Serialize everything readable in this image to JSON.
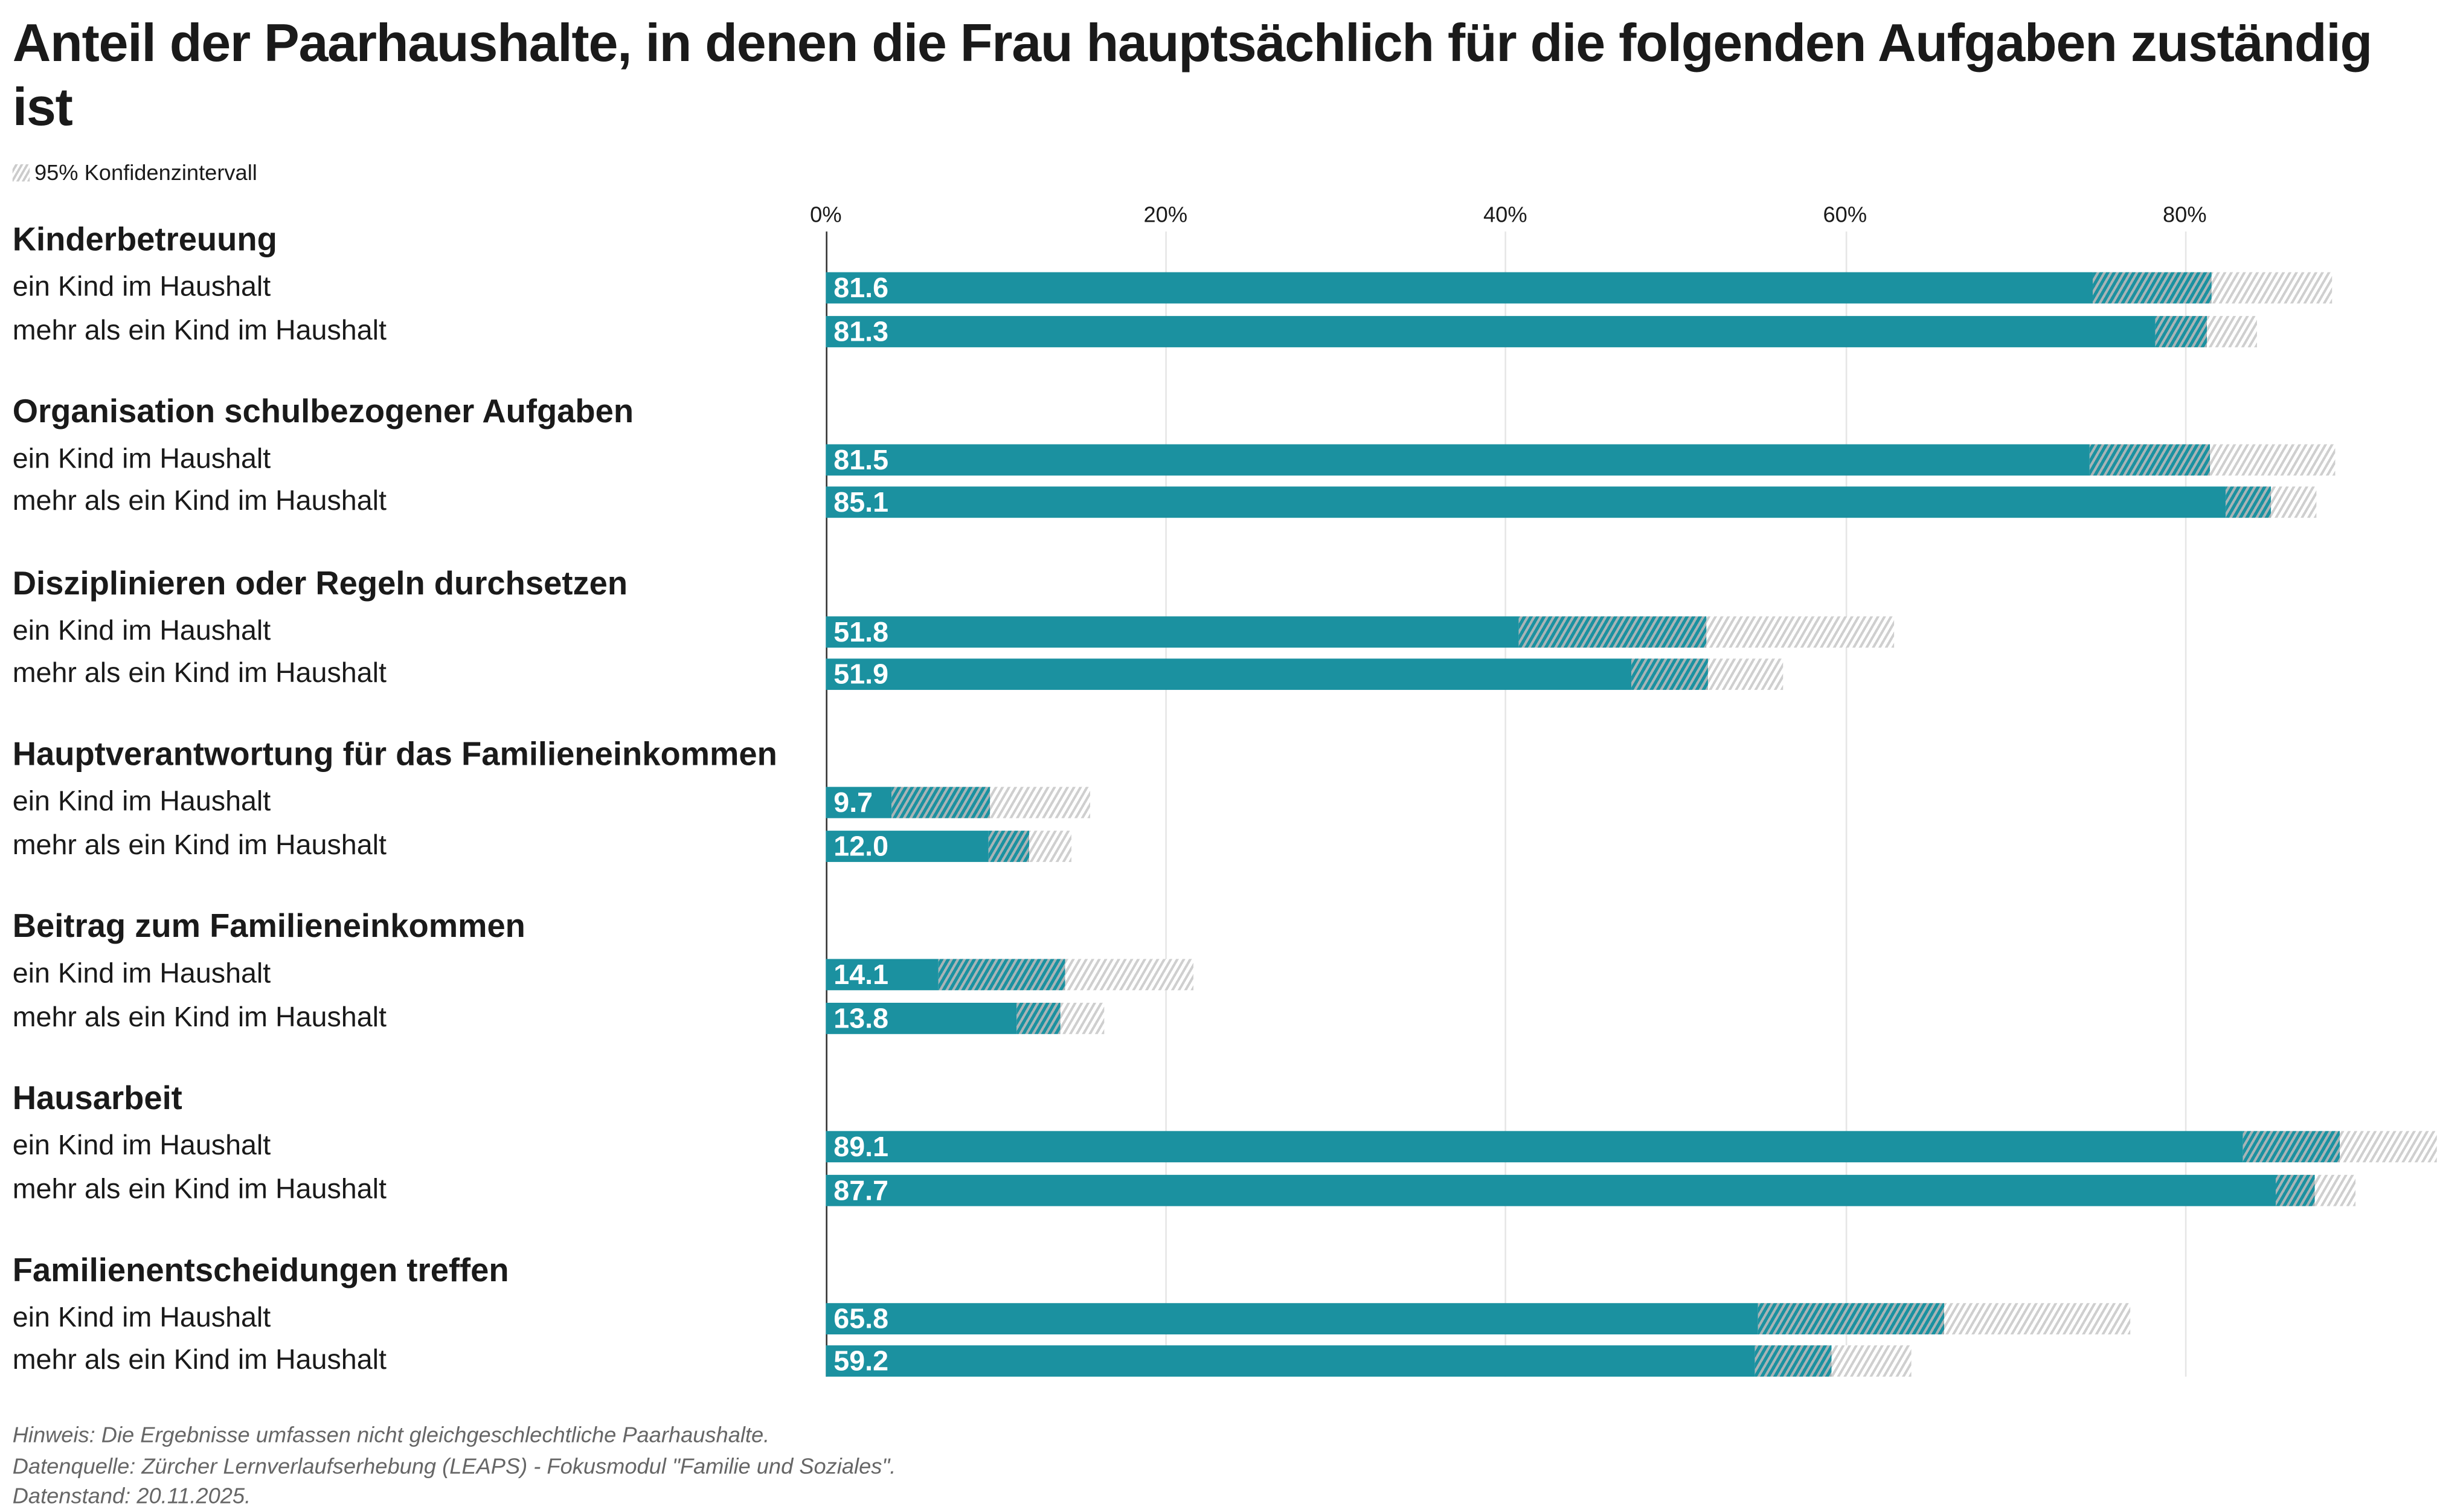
{
  "title": "Anteil der Paarhaushalte, in denen die Frau hauptsächlich für die folgenden Aufgaben zuständig ist",
  "legend": {
    "label": "95% Konfidenzintervall"
  },
  "footer": [
    "Hinweis: Die Ergebnisse umfassen nicht gleichgeschlechtliche Paarhaushalte.",
    "Datenquelle: Zürcher Lernverlaufserhebung (LEAPS) - Fokusmodul \"Familie und Soziales\".",
    "Datenstand: 20.11.2025."
  ],
  "chart_data": {
    "type": "bar",
    "orientation": "horizontal",
    "xlim": [
      0,
      95
    ],
    "ticks": [
      0,
      20,
      40,
      60,
      80
    ],
    "tick_labels": [
      "0%",
      "20%",
      "40%",
      "60%",
      "80%"
    ],
    "grid": true,
    "colors": {
      "bar": "#1b91a0",
      "ci": "#cccccc"
    },
    "groups": [
      {
        "name": "Kinderbetreuung",
        "rows": [
          {
            "label": "ein Kind im Haushalt",
            "value": 81.6,
            "ci": [
              74.6,
              88.7
            ]
          },
          {
            "label": "mehr als ein Kind im Haushalt",
            "value": 81.3,
            "ci": [
              78.3,
              84.3
            ]
          }
        ]
      },
      {
        "name": "Organisation schulbezogener Aufgaben",
        "rows": [
          {
            "label": "ein Kind im Haushalt",
            "value": 81.5,
            "ci": [
              74.4,
              88.9
            ]
          },
          {
            "label": "mehr als ein Kind im Haushalt",
            "value": 85.1,
            "ci": [
              82.4,
              87.8
            ]
          }
        ]
      },
      {
        "name": "Disziplinieren oder Regeln durchsetzen",
        "rows": [
          {
            "label": "ein Kind im Haushalt",
            "value": 51.8,
            "ci": [
              40.8,
              62.9
            ]
          },
          {
            "label": "mehr als ein Kind im Haushalt",
            "value": 51.9,
            "ci": [
              47.4,
              56.4
            ]
          }
        ]
      },
      {
        "name": "Hauptverantwortung für das Familieneinkommen",
        "rows": [
          {
            "label": "ein Kind im Haushalt",
            "value": 9.7,
            "ci": [
              3.9,
              15.6
            ]
          },
          {
            "label": "mehr als ein Kind im Haushalt",
            "value": 12.0,
            "ci": [
              9.6,
              14.5
            ]
          }
        ]
      },
      {
        "name": "Beitrag zum Familieneinkommen",
        "rows": [
          {
            "label": "ein Kind im Haushalt",
            "value": 14.1,
            "ci": [
              6.6,
              21.6
            ]
          },
          {
            "label": "mehr als ein Kind im Haushalt",
            "value": 13.8,
            "ci": [
              11.2,
              16.4
            ]
          }
        ]
      },
      {
        "name": "Hausarbeit",
        "rows": [
          {
            "label": "ein Kind im Haushalt",
            "value": 89.1,
            "ci": [
              83.4,
              94.8
            ]
          },
          {
            "label": "mehr als ein Kind im Haushalt",
            "value": 87.7,
            "ci": [
              85.4,
              90.1
            ]
          }
        ]
      },
      {
        "name": "Familienentscheidungen treffen",
        "rows": [
          {
            "label": "ein Kind im Haushalt",
            "value": 65.8,
            "ci": [
              54.9,
              76.8
            ]
          },
          {
            "label": "mehr als ein Kind im Haushalt",
            "value": 59.2,
            "ci": [
              54.7,
              63.9
            ]
          }
        ]
      }
    ]
  }
}
